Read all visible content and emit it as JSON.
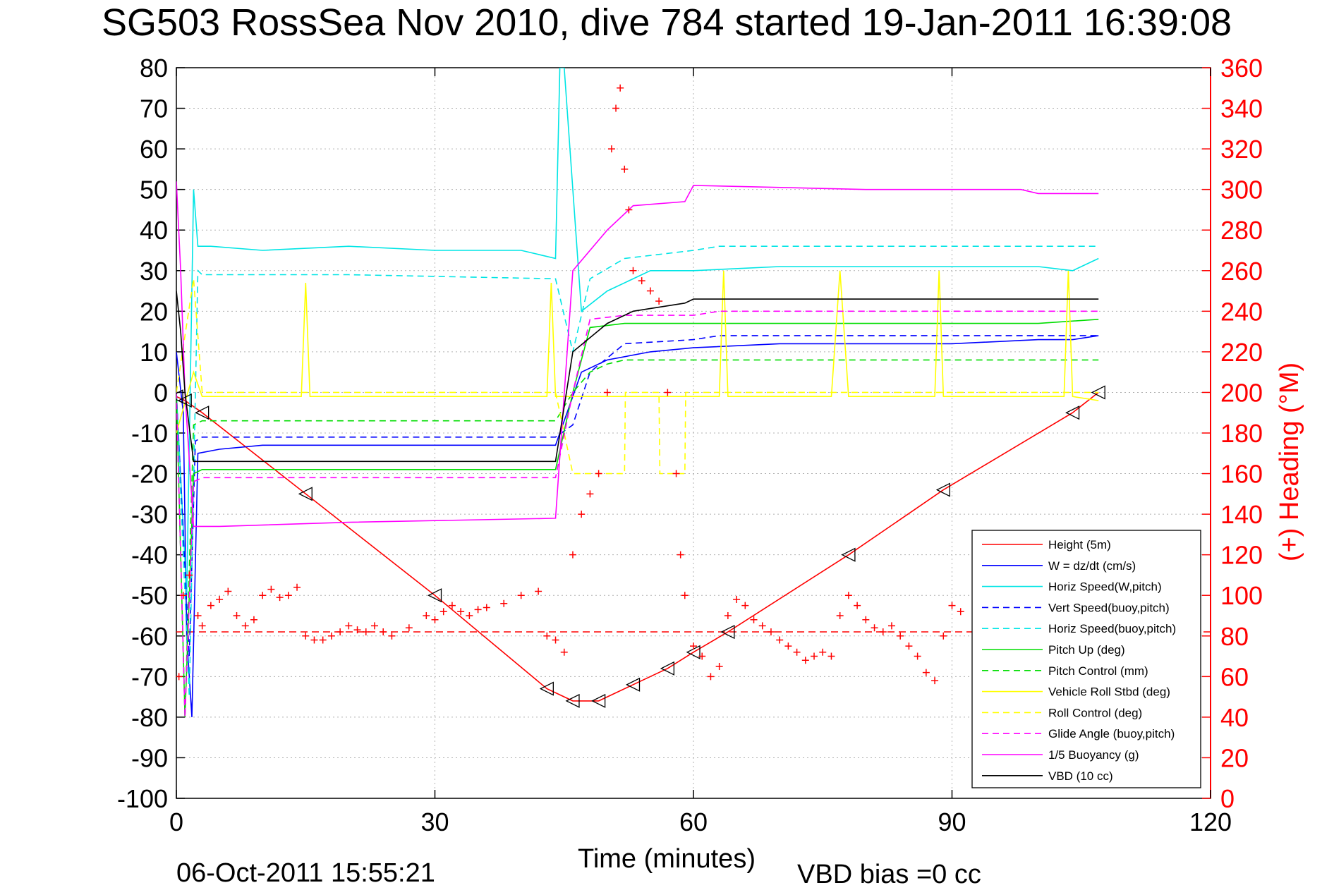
{
  "header": {
    "title": "SG503 RossSea Nov 2010, dive 784 started 19-Jan-2011 16:39:08"
  },
  "footer": {
    "timestamp": "06-Oct-2011 15:55:21",
    "vbd_bias": "VBD bias =0 cc"
  },
  "chart_data": {
    "type": "line",
    "title": "SG503 RossSea Nov 2010, dive 784 started 19-Jan-2011 16:39:08",
    "xlabel": "Time (minutes)",
    "ylabel": "",
    "y2label": "(+) Heading (°M)",
    "xlim": [
      0,
      120
    ],
    "ylim": [
      -100,
      80
    ],
    "y2lim": [
      0,
      360
    ],
    "xticks": [
      0,
      30,
      60,
      90,
      120
    ],
    "yticks": [
      80,
      70,
      60,
      50,
      40,
      30,
      20,
      10,
      0,
      -10,
      -20,
      -30,
      -40,
      -50,
      -60,
      -70,
      -80,
      -90,
      -100
    ],
    "y2ticks": [
      360,
      340,
      320,
      300,
      280,
      260,
      240,
      220,
      200,
      180,
      160,
      140,
      120,
      100,
      80,
      60,
      40,
      20,
      0
    ],
    "grid": true,
    "legend_position": "bottom-right",
    "colors": {
      "right_axis": "#ff0000"
    },
    "series": [
      {
        "name": "Height (5m)",
        "color": "#ff0000",
        "style": "solid",
        "x": [
          0,
          1,
          3,
          15,
          30,
          43,
          46,
          49,
          53,
          57,
          60,
          64,
          78,
          89,
          104,
          107
        ],
        "y": [
          -1,
          -2,
          -5,
          -25,
          -50,
          -73,
          -76,
          -76,
          -72,
          -68,
          -64,
          -59,
          -40,
          -24,
          -5,
          0
        ]
      },
      {
        "name": "W = dz/dt (cm/s)",
        "color": "#0000ff",
        "style": "solid",
        "x": [
          0,
          0.8,
          1.2,
          1.8,
          2.5,
          5,
          10,
          20,
          30,
          40,
          44,
          47,
          50,
          55,
          60,
          70,
          80,
          90,
          100,
          104,
          107
        ],
        "y": [
          10,
          -5,
          -60,
          -80,
          -15,
          -14,
          -13,
          -13,
          -13,
          -13,
          -13,
          5,
          8,
          10,
          11,
          12,
          12,
          12,
          13,
          13,
          14
        ]
      },
      {
        "name": "Horiz Speed(W,pitch)",
        "color": "#00e5e5",
        "style": "solid",
        "x": [
          0,
          1.2,
          2,
          2.5,
          4,
          10,
          20,
          30,
          40,
          44,
          44.5,
          45,
          47,
          50,
          55,
          60,
          70,
          80,
          90,
          100,
          104,
          107
        ],
        "y": [
          0,
          -50,
          50,
          36,
          36,
          35,
          36,
          35,
          35,
          33,
          80,
          80,
          20,
          25,
          30,
          30,
          31,
          31,
          31,
          31,
          30,
          33
        ]
      },
      {
        "name": "Vert Speed(buoy,pitch)",
        "color": "#0000ff",
        "style": "dashed",
        "x": [
          0,
          1.5,
          2.2,
          3,
          20,
          44,
          46,
          48,
          52,
          60,
          63,
          80,
          100,
          107
        ],
        "y": [
          0,
          -65,
          -12,
          -11,
          -11,
          -11,
          -8,
          5,
          12,
          13,
          14,
          14,
          14,
          14
        ]
      },
      {
        "name": "Horiz Speed(buoy,pitch)",
        "color": "#00e5e5",
        "style": "dashed",
        "x": [
          0,
          1.5,
          2.5,
          3,
          20,
          44,
          46,
          48,
          52,
          60,
          63,
          80,
          100,
          107
        ],
        "y": [
          0,
          -75,
          30,
          29,
          29,
          28,
          10,
          28,
          33,
          35,
          36,
          36,
          36,
          36
        ]
      },
      {
        "name": "Pitch Up (deg)",
        "color": "#00dd00",
        "style": "solid",
        "x": [
          0,
          1,
          2,
          3,
          20,
          44,
          46,
          48,
          52,
          60,
          70,
          80,
          100,
          107
        ],
        "y": [
          0,
          -80,
          -20,
          -19,
          -19,
          -19,
          0,
          16,
          17,
          17,
          17,
          17,
          17,
          18
        ]
      },
      {
        "name": "Pitch Control (mm)",
        "color": "#00dd00",
        "style": "dashed",
        "x": [
          0,
          1,
          2,
          3,
          20,
          44,
          46,
          48,
          50,
          52,
          60,
          80,
          100,
          107
        ],
        "y": [
          0,
          -80,
          -8,
          -7,
          -7,
          -7,
          0,
          5,
          7,
          8,
          8,
          8,
          8,
          8
        ]
      },
      {
        "name": "Vehicle Roll Stbd (deg)",
        "color": "#ffff00",
        "style": "solid",
        "x": [
          0,
          2,
          3,
          14.5,
          15,
          15.5,
          43,
          43.5,
          44,
          60,
          63,
          63.5,
          64,
          76,
          77,
          78,
          88,
          88.5,
          89,
          103,
          103.5,
          104,
          107
        ],
        "y": [
          -10,
          5,
          -1,
          -1,
          27,
          -1,
          -1,
          27,
          -1,
          -1,
          -1,
          30,
          -1,
          -1,
          30,
          -1,
          -1,
          30,
          -1,
          -1,
          30,
          -1,
          -2
        ]
      },
      {
        "name": "Roll Control (deg)",
        "color": "#ffff00",
        "style": "dashed",
        "x": [
          0,
          2,
          3,
          44,
          46,
          47,
          52,
          52.1,
          56,
          56.1,
          59,
          59.1,
          60,
          107
        ],
        "y": [
          0,
          28,
          0,
          0,
          -20,
          -20,
          -20,
          0,
          0,
          -20,
          -20,
          0,
          0,
          0
        ]
      },
      {
        "name": "Glide Angle (buoy,pitch)",
        "color": "#ff00ff",
        "style": "dashed",
        "x": [
          0,
          1,
          2,
          3,
          20,
          44,
          46,
          48,
          52,
          60,
          63,
          80,
          100,
          107
        ],
        "y": [
          0,
          -80,
          -22,
          -21,
          -21,
          -21,
          0,
          18,
          19,
          19,
          20,
          20,
          20,
          20
        ]
      },
      {
        "name": "1/5 Buoyancy (g)",
        "color": "#ff00ff",
        "style": "solid",
        "x": [
          0,
          0.5,
          1,
          2,
          5,
          20,
          44,
          46,
          50,
          53,
          59,
          60,
          80,
          98,
          100,
          107
        ],
        "y": [
          52,
          30,
          0,
          -33,
          -33,
          -32,
          -31,
          30,
          40,
          46,
          47,
          51,
          50,
          50,
          49,
          49
        ]
      },
      {
        "name": "VBD (10 cc)",
        "color": "#000000",
        "style": "solid",
        "x": [
          0,
          0.5,
          1,
          2,
          2.5,
          20,
          44,
          46,
          50,
          53,
          59,
          60,
          107
        ],
        "y": [
          25,
          15,
          0,
          -17,
          -17,
          -17,
          -17,
          10,
          17,
          20,
          22,
          23,
          23
        ]
      }
    ],
    "heading": {
      "name": "(+) Heading (°M)",
      "color": "#ff0000",
      "marker": "+",
      "axis": "right",
      "reference_value": 82,
      "points": [
        [
          0.3,
          60
        ],
        [
          0.8,
          100
        ],
        [
          1.5,
          110
        ],
        [
          2.5,
          90
        ],
        [
          3,
          85
        ],
        [
          4,
          95
        ],
        [
          5,
          98
        ],
        [
          6,
          102
        ],
        [
          7,
          90
        ],
        [
          8,
          85
        ],
        [
          9,
          88
        ],
        [
          10,
          100
        ],
        [
          11,
          103
        ],
        [
          12,
          99
        ],
        [
          13,
          100
        ],
        [
          14,
          104
        ],
        [
          15,
          80
        ],
        [
          16,
          78
        ],
        [
          17,
          78
        ],
        [
          18,
          80
        ],
        [
          19,
          82
        ],
        [
          20,
          85
        ],
        [
          21,
          83
        ],
        [
          22,
          82
        ],
        [
          23,
          85
        ],
        [
          24,
          82
        ],
        [
          25,
          80
        ],
        [
          27,
          84
        ],
        [
          29,
          90
        ],
        [
          30,
          88
        ],
        [
          31,
          92
        ],
        [
          32,
          95
        ],
        [
          33,
          92
        ],
        [
          34,
          90
        ],
        [
          35,
          93
        ],
        [
          36,
          94
        ],
        [
          38,
          96
        ],
        [
          40,
          100
        ],
        [
          42,
          102
        ],
        [
          43,
          80
        ],
        [
          44,
          78
        ],
        [
          45,
          72
        ],
        [
          46,
          120
        ],
        [
          47,
          140
        ],
        [
          48,
          150
        ],
        [
          49,
          160
        ],
        [
          50,
          200
        ],
        [
          50.5,
          320
        ],
        [
          51,
          340
        ],
        [
          51.5,
          350
        ],
        [
          52,
          310
        ],
        [
          52.5,
          290
        ],
        [
          53,
          260
        ],
        [
          54,
          255
        ],
        [
          55,
          250
        ],
        [
          56,
          245
        ],
        [
          57,
          200
        ],
        [
          58,
          160
        ],
        [
          58.5,
          120
        ],
        [
          59,
          100
        ],
        [
          60,
          75
        ],
        [
          61,
          70
        ],
        [
          62,
          60
        ],
        [
          63,
          65
        ],
        [
          64,
          90
        ],
        [
          65,
          98
        ],
        [
          66,
          95
        ],
        [
          67,
          88
        ],
        [
          68,
          85
        ],
        [
          69,
          82
        ],
        [
          70,
          78
        ],
        [
          71,
          75
        ],
        [
          72,
          72
        ],
        [
          73,
          68
        ],
        [
          74,
          70
        ],
        [
          75,
          72
        ],
        [
          76,
          70
        ],
        [
          77,
          90
        ],
        [
          78,
          100
        ],
        [
          79,
          95
        ],
        [
          80,
          88
        ],
        [
          81,
          84
        ],
        [
          82,
          82
        ],
        [
          83,
          85
        ],
        [
          84,
          80
        ],
        [
          85,
          75
        ],
        [
          86,
          70
        ],
        [
          87,
          62
        ],
        [
          88,
          58
        ],
        [
          89,
          80
        ],
        [
          90,
          95
        ],
        [
          91,
          92
        ]
      ]
    }
  }
}
